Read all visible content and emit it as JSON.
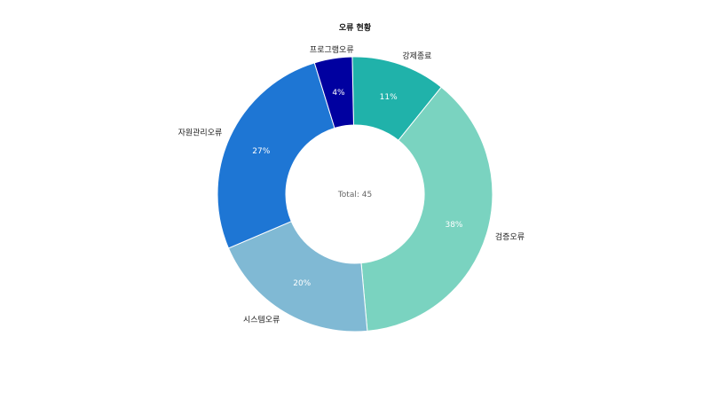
{
  "chart_data": {
    "type": "pie",
    "title": "오류 현황",
    "center_text": "Total: 45",
    "slices": [
      {
        "label": "강제종료",
        "percent_label": "11%",
        "value": 5,
        "color": "#20b2aa"
      },
      {
        "label": "검증오류",
        "percent_label": "38%",
        "value": 17,
        "color": "#7ad3c0"
      },
      {
        "label": "시스템오류",
        "percent_label": "20%",
        "value": 9,
        "color": "#80b9d4"
      },
      {
        "label": "자원관리오류",
        "percent_label": "27%",
        "value": 12,
        "color": "#1e76d4"
      },
      {
        "label": "프로그램오류",
        "percent_label": "4%",
        "value": 2,
        "color": "#0000a0"
      }
    ]
  }
}
